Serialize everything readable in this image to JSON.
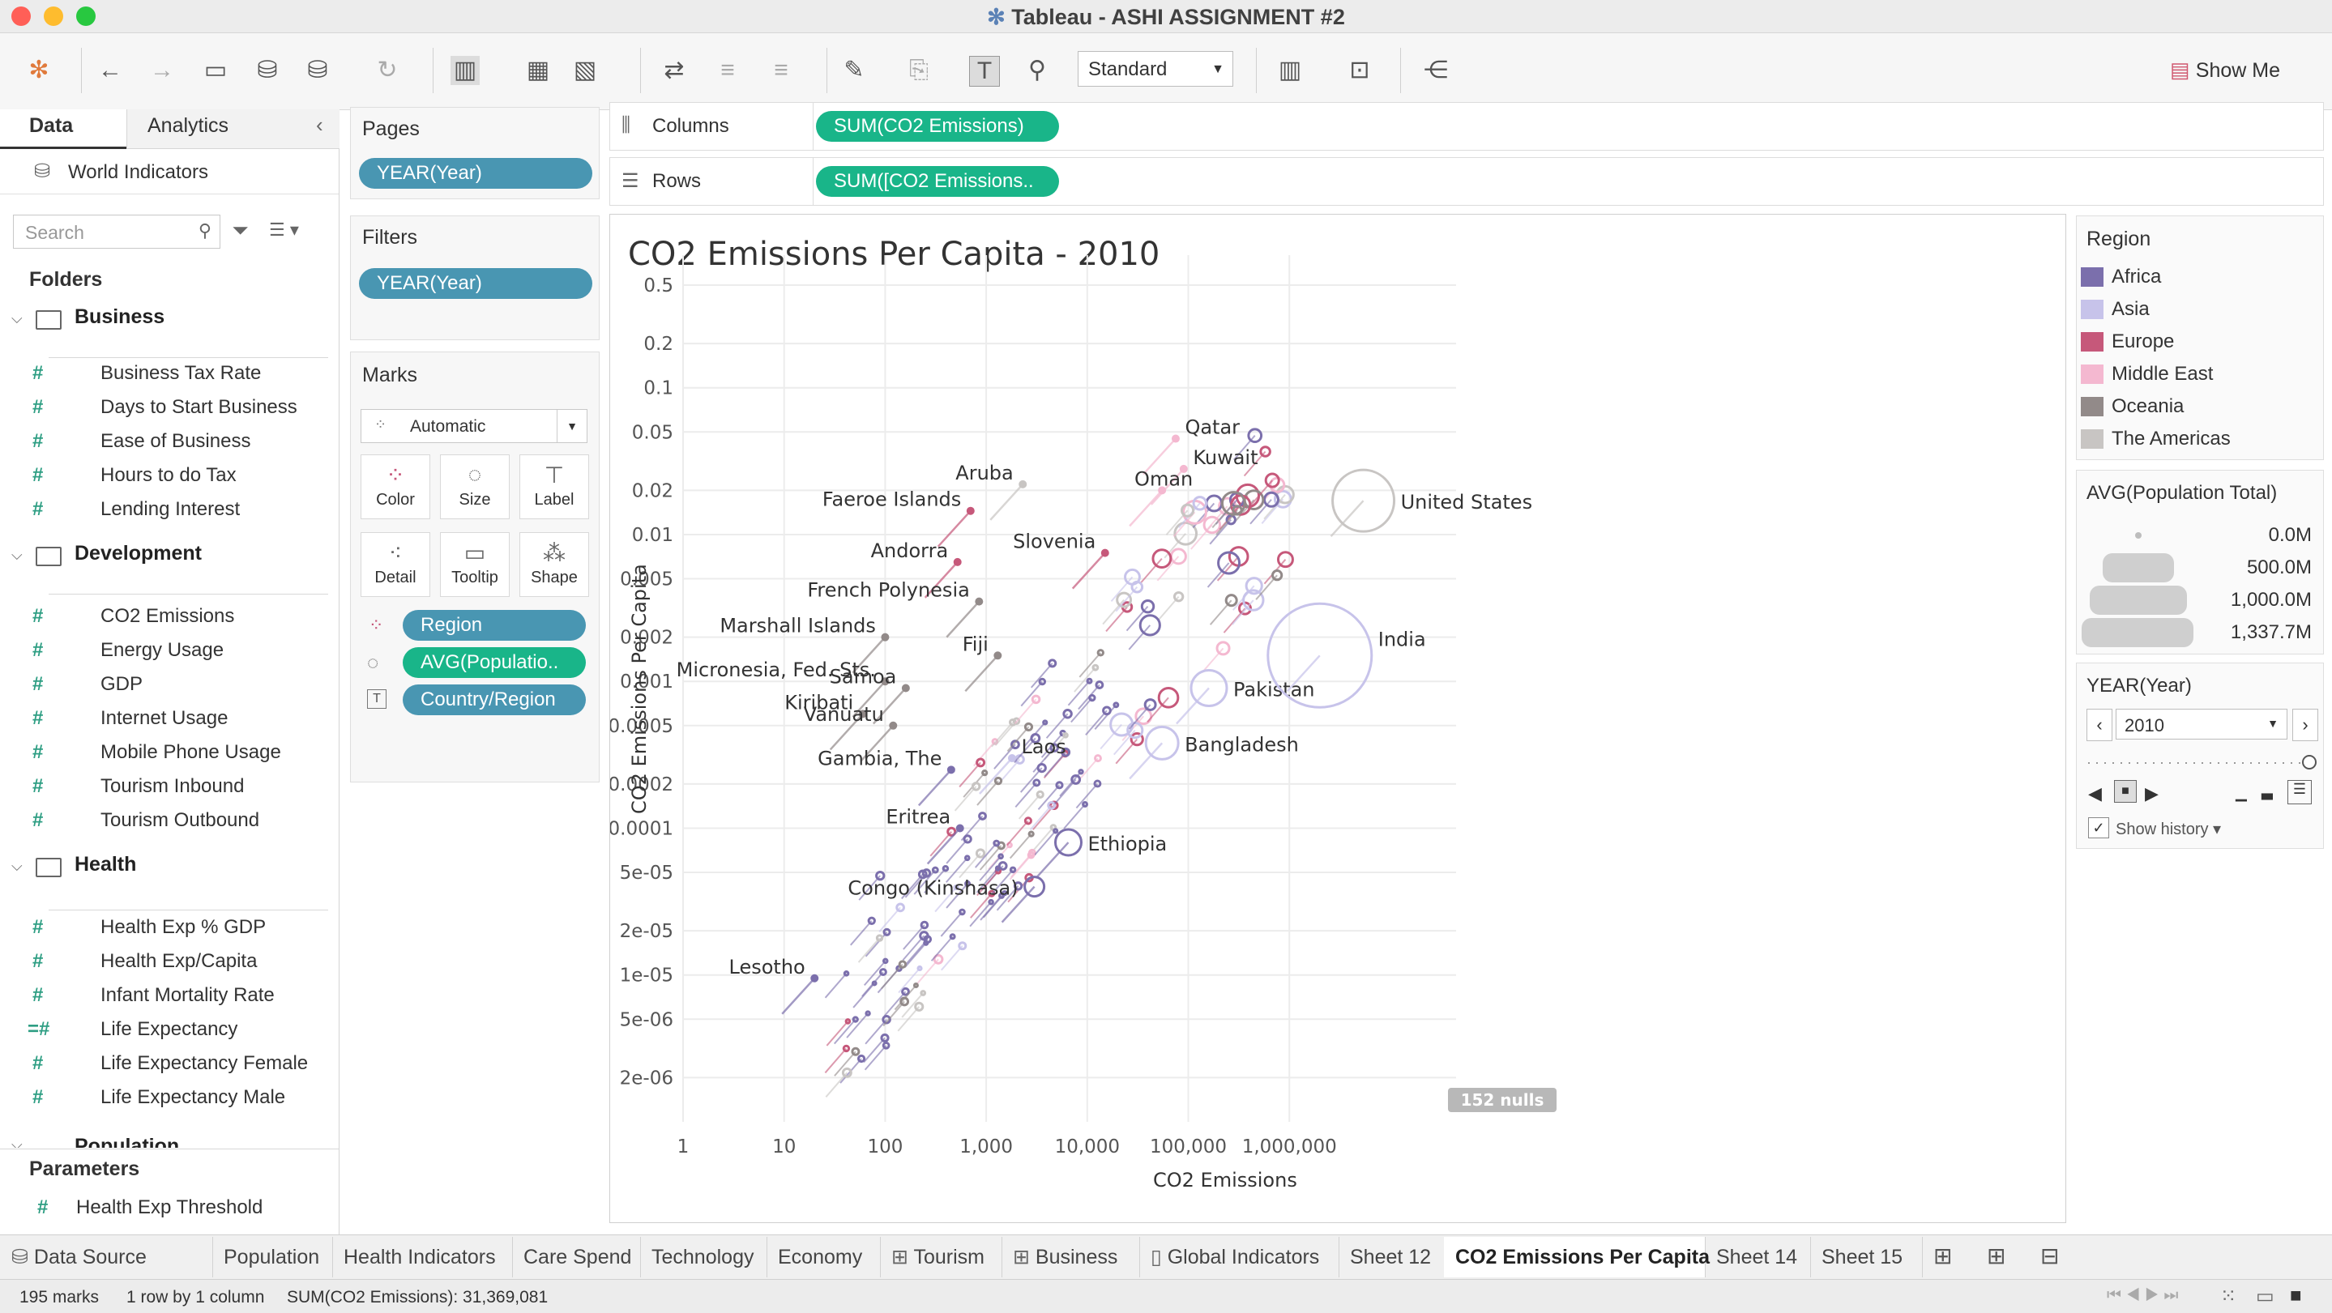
{
  "window": {
    "title": "Tableau - ASHI ASSIGNMENT #2"
  },
  "toolbar": {
    "mark_select": "Standard",
    "show_me": "Show Me"
  },
  "left_pane": {
    "tabs": [
      "Data",
      "Analytics"
    ],
    "datasource": "World Indicators",
    "search_placeholder": "Search",
    "folders_label": "Folders",
    "folders": [
      {
        "name": "Business",
        "fields": [
          "Business Tax Rate",
          "Days to Start Business",
          "Ease of Business",
          "Hours to do Tax",
          "Lending Interest"
        ]
      },
      {
        "name": "Development",
        "fields": [
          "CO2 Emissions",
          "Energy Usage",
          "GDP",
          "Internet Usage",
          "Mobile Phone Usage",
          "Tourism Inbound",
          "Tourism Outbound"
        ]
      },
      {
        "name": "Health",
        "fields": [
          "Health Exp % GDP",
          "Health Exp/Capita",
          "Infant Mortality Rate",
          "Life Expectancy",
          "Life Expectancy Female",
          "Life Expectancy Male"
        ]
      },
      {
        "name": "Population",
        "fields": []
      }
    ],
    "parameters_label": "Parameters",
    "parameters": [
      "Health Exp Threshold"
    ]
  },
  "pages_card": {
    "title": "Pages",
    "pill": "YEAR(Year)"
  },
  "filters_card": {
    "title": "Filters",
    "pill": "YEAR(Year)"
  },
  "marks_card": {
    "title": "Marks",
    "type": "Automatic",
    "buttons": [
      "Color",
      "Size",
      "Label",
      "Detail",
      "Tooltip",
      "Shape"
    ],
    "pills": [
      "Region",
      "AVG(Populatio..",
      "Country/Region"
    ]
  },
  "shelves": {
    "columns_label": "Columns",
    "columns_pill": "SUM(CO2 Emissions)",
    "rows_label": "Rows",
    "rows_pill": "SUM([CO2 Emissions.."
  },
  "chart_data": {
    "type": "scatter",
    "title": "CO2 Emissions Per Capita - 2010",
    "xlabel": "CO2 Emissions",
    "ylabel": "CO2 Emissions Per Capita",
    "x_scale": "log",
    "y_scale": "log",
    "x_ticks": [
      "1",
      "10",
      "100",
      "1,000",
      "10,000",
      "100,000",
      "1,000,000"
    ],
    "y_ticks": [
      "0.5",
      "0.2",
      "0.1",
      "0.05",
      "0.02",
      "0.01",
      "0.005",
      "0.002",
      "0.001",
      "0.0005",
      "0.0002",
      "0.0001",
      "5e-05",
      "2e-05",
      "1e-05",
      "5e-06",
      "2e-06"
    ],
    "null_badge": "152 nulls",
    "labeled_points": [
      {
        "label": "Qatar",
        "x": 75000,
        "y": 0.045,
        "region": "Middle East"
      },
      {
        "label": "United States",
        "x": 5400000,
        "y": 0.017,
        "region": "The Americas"
      },
      {
        "label": "Kuwait",
        "x": 90000,
        "y": 0.028,
        "region": "Middle East"
      },
      {
        "label": "Oman",
        "x": 55000,
        "y": 0.02,
        "region": "Middle East"
      },
      {
        "label": "Aruba",
        "x": 2300,
        "y": 0.022,
        "region": "The Americas"
      },
      {
        "label": "Faeroe Islands",
        "x": 700,
        "y": 0.0145,
        "region": "Europe"
      },
      {
        "label": "Slovenia",
        "x": 15000,
        "y": 0.0075,
        "region": "Europe"
      },
      {
        "label": "Andorra",
        "x": 520,
        "y": 0.0065,
        "region": "Europe"
      },
      {
        "label": "French Polynesia",
        "x": 850,
        "y": 0.0035,
        "region": "Oceania"
      },
      {
        "label": "Marshall Islands",
        "x": 100,
        "y": 0.002,
        "region": "Oceania"
      },
      {
        "label": "Micronesia, Fed. Sts.",
        "x": 100,
        "y": 0.001,
        "region": "Oceania"
      },
      {
        "label": "Samoa",
        "x": 160,
        "y": 0.0009,
        "region": "Oceania"
      },
      {
        "label": "Fiji",
        "x": 1300,
        "y": 0.0015,
        "region": "Oceania"
      },
      {
        "label": "Kiribati",
        "x": 60,
        "y": 0.0006,
        "region": "Oceania"
      },
      {
        "label": "Vanuatu",
        "x": 120,
        "y": 0.0005,
        "region": "Oceania"
      },
      {
        "label": "Laos",
        "x": 1800,
        "y": 0.0003,
        "region": "Asia"
      },
      {
        "label": "Gambia, The",
        "x": 450,
        "y": 0.00025,
        "region": "Africa"
      },
      {
        "label": "Pakistan",
        "x": 160000,
        "y": 0.0009,
        "region": "Asia"
      },
      {
        "label": "India",
        "x": 2000000,
        "y": 0.0015,
        "region": "Asia"
      },
      {
        "label": "Bangladesh",
        "x": 55000,
        "y": 0.00038,
        "region": "Asia"
      },
      {
        "label": "Eritrea",
        "x": 550,
        "y": 0.0001,
        "region": "Africa"
      },
      {
        "label": "Ethiopia",
        "x": 6500,
        "y": 8e-05,
        "region": "Africa"
      },
      {
        "label": "Congo (Kinshasa)",
        "x": 3000,
        "y": 4e-05,
        "region": "Africa"
      },
      {
        "label": "Lesotho",
        "x": 20,
        "y": 9.5e-06,
        "region": "Africa"
      }
    ]
  },
  "legends": {
    "region_title": "Region",
    "regions": [
      {
        "name": "Africa",
        "color": "#7b6fac"
      },
      {
        "name": "Asia",
        "color": "#c7c3ea"
      },
      {
        "name": "Europe",
        "color": "#c6587a"
      },
      {
        "name": "Middle East",
        "color": "#f4b8d0"
      },
      {
        "name": "Oceania",
        "color": "#928a89"
      },
      {
        "name": "The Americas",
        "color": "#c8c5c3"
      }
    ],
    "size_title": "AVG(Population Total)",
    "sizes": [
      "0.0M",
      "500.0M",
      "1,000.0M",
      "1,337.7M"
    ],
    "year_title": "YEAR(Year)",
    "year_value": "2010",
    "show_history": "Show history"
  },
  "sheet_tabs": [
    "Data Source",
    "Population",
    "Health Indicators",
    "Care Spend",
    "Technology",
    "Economy",
    "Tourism",
    "Business",
    "Global Indicators",
    "Sheet 12",
    "CO2 Emissions Per Capita",
    "Sheet 14",
    "Sheet 15"
  ],
  "status": {
    "marks": "195 marks",
    "rows": "1 row by 1 column",
    "sum": "SUM(CO2 Emissions): 31,369,081"
  }
}
